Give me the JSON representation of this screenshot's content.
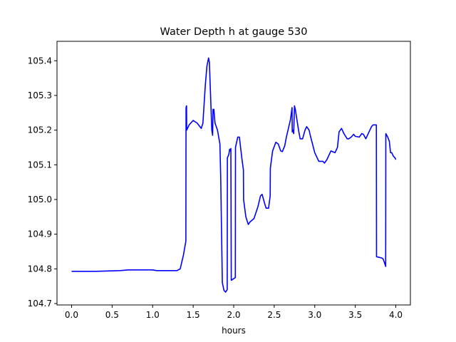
{
  "chart_data": {
    "type": "line",
    "title": "Water Depth h at gauge 530",
    "xlabel": "hours",
    "ylabel": "",
    "xlim": [
      -0.18,
      4.18
    ],
    "ylim": [
      104.696,
      105.456
    ],
    "xticks": [
      0.0,
      0.5,
      1.0,
      1.5,
      2.0,
      2.5,
      3.0,
      3.5,
      4.0
    ],
    "xtick_labels": [
      "0.0",
      "0.5",
      "1.0",
      "1.5",
      "2.0",
      "2.5",
      "3.0",
      "3.5",
      "4.0"
    ],
    "yticks": [
      104.7,
      104.8,
      104.9,
      105.0,
      105.1,
      105.2,
      105.3,
      105.4
    ],
    "ytick_labels": [
      "104.7",
      "104.8",
      "104.9",
      "105.0",
      "105.1",
      "105.2",
      "105.3",
      "105.4"
    ],
    "grid": false,
    "legend": "none",
    "series": [
      {
        "color": "#0000ff",
        "points": [
          [
            0.0,
            104.793
          ],
          [
            0.3,
            104.793
          ],
          [
            0.6,
            104.795
          ],
          [
            0.7,
            104.797
          ],
          [
            1.0,
            104.797
          ],
          [
            1.05,
            104.795
          ],
          [
            1.3,
            104.795
          ],
          [
            1.34,
            104.8
          ],
          [
            1.38,
            104.84
          ],
          [
            1.41,
            104.88
          ],
          [
            1.412,
            105.265
          ],
          [
            1.418,
            105.27
          ],
          [
            1.42,
            105.2
          ],
          [
            1.45,
            105.215
          ],
          [
            1.5,
            105.228
          ],
          [
            1.55,
            105.22
          ],
          [
            1.6,
            105.205
          ],
          [
            1.62,
            105.22
          ],
          [
            1.65,
            105.33
          ],
          [
            1.67,
            105.385
          ],
          [
            1.69,
            105.408
          ],
          [
            1.7,
            105.395
          ],
          [
            1.73,
            105.2
          ],
          [
            1.74,
            105.185
          ],
          [
            1.745,
            105.26
          ],
          [
            1.75,
            105.25
          ],
          [
            1.755,
            105.26
          ],
          [
            1.77,
            105.22
          ],
          [
            1.8,
            105.2
          ],
          [
            1.83,
            105.16
          ],
          [
            1.84,
            105.06
          ],
          [
            1.86,
            104.76
          ],
          [
            1.88,
            104.738
          ],
          [
            1.9,
            104.733
          ],
          [
            1.92,
            104.74
          ],
          [
            1.922,
            105.12
          ],
          [
            1.94,
            105.13
          ],
          [
            1.95,
            105.145
          ],
          [
            1.96,
            105.14
          ],
          [
            1.965,
            105.147
          ],
          [
            1.97,
            104.767
          ],
          [
            2.02,
            104.775
          ],
          [
            2.022,
            105.15
          ],
          [
            2.05,
            105.18
          ],
          [
            2.07,
            105.18
          ],
          [
            2.1,
            105.12
          ],
          [
            2.12,
            105.085
          ],
          [
            2.122,
            105.0
          ],
          [
            2.15,
            104.95
          ],
          [
            2.18,
            104.928
          ],
          [
            2.2,
            104.935
          ],
          [
            2.25,
            104.945
          ],
          [
            2.3,
            104.98
          ],
          [
            2.33,
            105.01
          ],
          [
            2.35,
            105.015
          ],
          [
            2.38,
            104.99
          ],
          [
            2.4,
            104.975
          ],
          [
            2.43,
            104.975
          ],
          [
            2.45,
            105.01
          ],
          [
            2.452,
            105.09
          ],
          [
            2.48,
            105.14
          ],
          [
            2.52,
            105.165
          ],
          [
            2.55,
            105.16
          ],
          [
            2.58,
            105.14
          ],
          [
            2.6,
            105.138
          ],
          [
            2.63,
            105.155
          ],
          [
            2.65,
            105.18
          ],
          [
            2.7,
            105.23
          ],
          [
            2.72,
            105.265
          ],
          [
            2.722,
            105.195
          ],
          [
            2.73,
            105.2
          ],
          [
            2.74,
            105.19
          ],
          [
            2.75,
            105.27
          ],
          [
            2.76,
            105.26
          ],
          [
            2.8,
            105.2
          ],
          [
            2.82,
            105.175
          ],
          [
            2.85,
            105.175
          ],
          [
            2.88,
            105.2
          ],
          [
            2.9,
            105.21
          ],
          [
            2.93,
            105.2
          ],
          [
            2.95,
            105.18
          ],
          [
            3.0,
            105.135
          ],
          [
            3.05,
            105.11
          ],
          [
            3.1,
            105.11
          ],
          [
            3.12,
            105.105
          ],
          [
            3.15,
            105.115
          ],
          [
            3.2,
            105.14
          ],
          [
            3.25,
            105.135
          ],
          [
            3.28,
            105.15
          ],
          [
            3.3,
            105.195
          ],
          [
            3.33,
            105.205
          ],
          [
            3.36,
            105.19
          ],
          [
            3.4,
            105.175
          ],
          [
            3.42,
            105.175
          ],
          [
            3.45,
            105.18
          ],
          [
            3.48,
            105.188
          ],
          [
            3.5,
            105.182
          ],
          [
            3.55,
            105.18
          ],
          [
            3.58,
            105.19
          ],
          [
            3.6,
            105.188
          ],
          [
            3.63,
            105.175
          ],
          [
            3.67,
            105.195
          ],
          [
            3.7,
            105.21
          ],
          [
            3.72,
            105.215
          ],
          [
            3.76,
            105.215
          ],
          [
            3.762,
            104.835
          ],
          [
            3.8,
            104.833
          ],
          [
            3.84,
            104.83
          ],
          [
            3.86,
            104.818
          ],
          [
            3.875,
            104.807
          ],
          [
            3.877,
            105.19
          ],
          [
            3.9,
            105.18
          ],
          [
            3.92,
            105.168
          ],
          [
            3.935,
            105.135
          ],
          [
            3.95,
            105.135
          ],
          [
            3.97,
            105.125
          ],
          [
            3.99,
            105.12
          ],
          [
            4.0,
            105.115
          ]
        ]
      }
    ]
  }
}
